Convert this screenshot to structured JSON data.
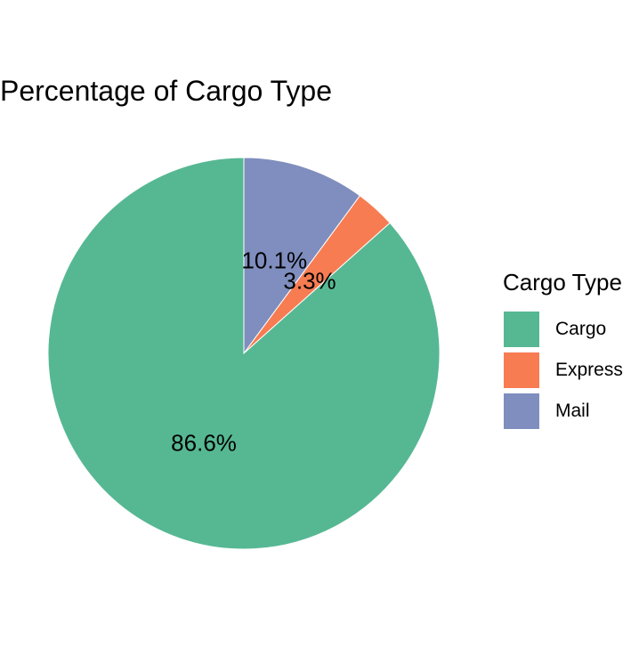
{
  "chart_data": {
    "type": "pie",
    "title": "Percentage of Cargo Type",
    "legend_title": "Cargo Type",
    "legend_position": "right",
    "slices": [
      {
        "label": "Cargo",
        "value": 86.6,
        "display": "86.6%",
        "color": "#56B893"
      },
      {
        "label": "Express",
        "value": 3.3,
        "display": "3.3%",
        "color": "#F77C52"
      },
      {
        "label": "Mail",
        "value": 10.1,
        "display": "10.1%",
        "color": "#7F8EBE"
      }
    ]
  }
}
